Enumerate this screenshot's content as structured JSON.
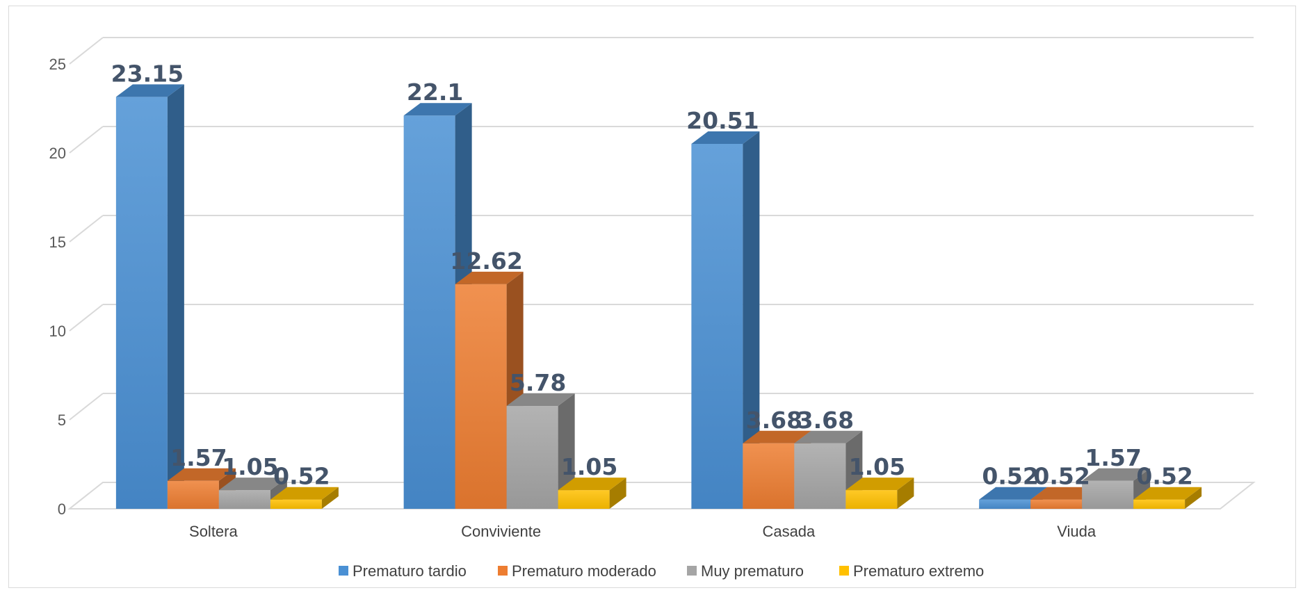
{
  "chart_data": {
    "type": "bar",
    "title": "",
    "xlabel": "",
    "ylabel": "",
    "ylim": [
      0,
      25
    ],
    "yticks": [
      0,
      5,
      10,
      15,
      20,
      25
    ],
    "grid": true,
    "style": "3d-clustered-column",
    "legend_position": "bottom",
    "categories": [
      "Soltera",
      "Conviviente",
      "Casada",
      "Viuda"
    ],
    "series": [
      {
        "name": "Prematuro tardio",
        "color": "#4a90d4",
        "values": [
          23.15,
          22.1,
          20.51,
          0.52
        ],
        "labels": [
          "23.15",
          "22.1",
          "20.51",
          "0.52"
        ]
      },
      {
        "name": "Prematuro moderado",
        "color": "#ed7d31",
        "values": [
          1.57,
          12.62,
          3.68,
          0.52
        ],
        "labels": [
          "1.57",
          "12.62",
          "3.68",
          "0.52"
        ]
      },
      {
        "name": "Muy prematuro",
        "color": "#a5a5a5",
        "values": [
          1.05,
          5.78,
          3.68,
          1.57
        ],
        "labels": [
          "1.05",
          "5.78",
          "3.68",
          "1.57"
        ]
      },
      {
        "name": "Prematuro extremo",
        "color": "#ffc000",
        "values": [
          0.52,
          1.05,
          1.05,
          0.52
        ],
        "labels": [
          "0.52",
          "1.05",
          "1.05",
          "0.52"
        ]
      }
    ]
  }
}
